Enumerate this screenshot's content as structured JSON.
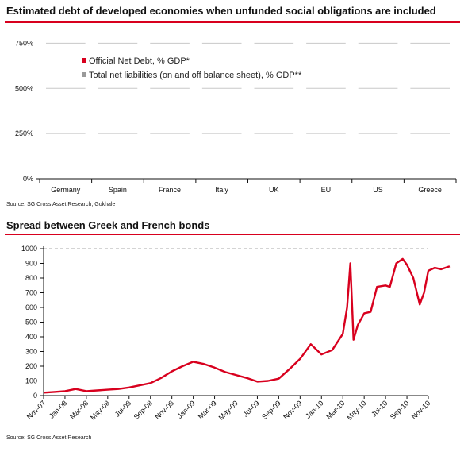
{
  "chart_data": [
    {
      "type": "bar",
      "title": "Estimated debt of developed economies when unfunded social obligations are included",
      "categories": [
        "Germany",
        "Spain",
        "France",
        "Italy",
        "UK",
        "EU",
        "US",
        "Greece"
      ],
      "series": [
        {
          "name": "Official Net Debt, % GDP*",
          "values": [
            null,
            null,
            null,
            null,
            null,
            null,
            null,
            null
          ],
          "color": "#d8001e"
        },
        {
          "name": "Total net liabilities (on and off balance sheet), % GDP**",
          "values": [
            null,
            null,
            null,
            null,
            null,
            null,
            null,
            null
          ],
          "color": "#9a9a9a"
        }
      ],
      "y_ticks": [
        "0%",
        "250%",
        "500%",
        "750%"
      ],
      "ylim": [
        0,
        800
      ],
      "legend_position": "top-left",
      "grid": true,
      "source": "Source: SG Cross Asset Research, Gokhale"
    },
    {
      "type": "line",
      "title": "Spread between Greek and French bonds",
      "y_ticks": [
        "0",
        "100",
        "200",
        "300",
        "400",
        "500",
        "600",
        "700",
        "800",
        "900",
        "1000"
      ],
      "ylim": [
        0,
        1000
      ],
      "x_ticks": [
        "Nov-07",
        "Jan-08",
        "Mar-08",
        "May-08",
        "Jul-08",
        "Sep-08",
        "Nov-08",
        "Jan-09",
        "Mar-09",
        "May-09",
        "Jul-09",
        "Sep-09",
        "Nov-09",
        "Jan-10",
        "Mar-10",
        "May-10",
        "Jul-10",
        "Sep-10",
        "Nov-10"
      ],
      "series": [
        {
          "color": "#d8001e",
          "x": [
            0,
            0.5,
            1,
            1.5,
            2,
            2.5,
            3,
            3.5,
            4,
            4.5,
            5,
            5.5,
            6,
            6.5,
            7,
            7.5,
            8,
            8.5,
            9,
            9.5,
            10,
            10.5,
            11,
            11.5,
            12,
            12.5,
            13,
            13.5,
            14,
            14.2,
            14.35,
            14.5,
            14.7,
            15,
            15.3,
            15.6,
            16,
            16.2,
            16.5,
            16.8,
            17,
            17.3,
            17.6,
            17.8,
            18,
            18.3,
            18.6,
            19
          ],
          "values": [
            20,
            25,
            30,
            45,
            30,
            35,
            40,
            45,
            55,
            70,
            85,
            120,
            165,
            200,
            230,
            215,
            190,
            160,
            140,
            120,
            95,
            100,
            115,
            180,
            250,
            350,
            280,
            310,
            420,
            600,
            900,
            380,
            480,
            560,
            570,
            740,
            750,
            740,
            900,
            930,
            890,
            800,
            620,
            700,
            850,
            870,
            860,
            880
          ]
        }
      ],
      "grid": "dashed at 1000",
      "source": "Source: SG Cross Asset Research"
    }
  ]
}
